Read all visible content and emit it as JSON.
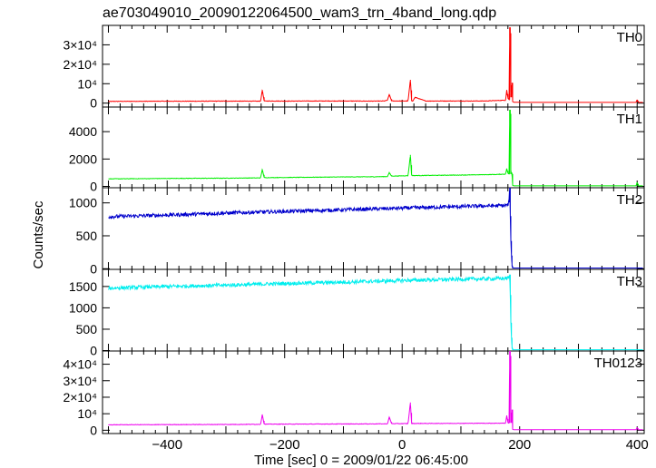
{
  "chart_data": {
    "type": "line",
    "title": "ae703049010_20090122064500_wam3_trn_4band_long.qdp",
    "xlabel": "Time [sec] 0 = 2009/01/22 06:45:00",
    "ylabel": "Counts/sec",
    "xlim": [
      -510,
      412
    ],
    "x_ticks": [
      -400,
      -200,
      0,
      200,
      400
    ],
    "panels": [
      {
        "name": "TH0",
        "color": "#ff0000",
        "ylim": [
          -2000,
          40000
        ],
        "y_ticks": [
          {
            "value": 0,
            "label": "0"
          },
          {
            "value": 10000,
            "label": "10⁴"
          },
          {
            "value": 20000,
            "label": "2×10⁴"
          },
          {
            "value": 30000,
            "label": "3×10⁴"
          }
        ],
        "series": {
          "x": [
            -500,
            -450,
            -400,
            -350,
            -300,
            -241,
            -238,
            -235,
            -200,
            -150,
            -100,
            -50,
            -30,
            -25,
            -22,
            -18,
            -15,
            -10,
            10,
            14,
            16,
            18,
            22,
            40,
            60,
            100,
            140,
            176,
            178,
            180,
            182,
            183,
            184,
            185,
            186,
            187,
            188,
            190,
            200,
            250,
            300,
            350,
            398,
            400,
            402,
            410
          ],
          "y": [
            900,
            950,
            1000,
            1000,
            1050,
            1000,
            6800,
            1100,
            1050,
            1100,
            1100,
            1050,
            1100,
            1500,
            4500,
            1200,
            1100,
            1100,
            1100,
            12000,
            1200,
            1100,
            3000,
            1100,
            1100,
            1100,
            1100,
            1500,
            6800,
            2500,
            1800,
            39000,
            36000,
            3000,
            8000,
            10500,
            800,
            500,
            400,
            400,
            400,
            400,
            400,
            1800,
            400,
            400
          ]
        }
      },
      {
        "name": "TH1",
        "color": "#00ee00",
        "ylim": [
          -100,
          5800
        ],
        "y_ticks": [
          {
            "value": 0,
            "label": "0"
          },
          {
            "value": 2000,
            "label": "2000"
          },
          {
            "value": 4000,
            "label": "4000"
          }
        ],
        "series": {
          "x": [
            -500,
            -450,
            -400,
            -350,
            -300,
            -241,
            -238,
            -235,
            -200,
            -150,
            -100,
            -50,
            -25,
            -22,
            -18,
            -10,
            10,
            14,
            16,
            18,
            40,
            80,
            120,
            160,
            176,
            178,
            180,
            182,
            183,
            184,
            185,
            186,
            187,
            188,
            190,
            200,
            300,
            398,
            400,
            402,
            410
          ],
          "y": [
            550,
            560,
            580,
            590,
            600,
            620,
            1250,
            640,
            650,
            670,
            690,
            700,
            720,
            1000,
            750,
            760,
            780,
            2300,
            800,
            790,
            800,
            820,
            840,
            870,
            900,
            1300,
            950,
            900,
            5600,
            5300,
            900,
            1000,
            900,
            80,
            40,
            40,
            40,
            40,
            300,
            40,
            40
          ]
        }
      },
      {
        "name": "TH2",
        "color": "#0000cc",
        "ylim": [
          -10,
          1230
        ],
        "y_ticks": [
          {
            "value": 0,
            "label": "0"
          },
          {
            "value": 500,
            "label": "500"
          },
          {
            "value": 1000,
            "label": "1000"
          }
        ],
        "series": {
          "x": [
            -500,
            -400,
            -300,
            -200,
            -100,
            0,
            100,
            150,
            175,
            180,
            182,
            183,
            184,
            185,
            186,
            187,
            188,
            190,
            200,
            300,
            400,
            410
          ],
          "y": [
            790,
            815,
            845,
            870,
            895,
            920,
            945,
            955,
            960,
            970,
            1040,
            1230,
            800,
            420,
            200,
            40,
            10,
            10,
            10,
            10,
            10,
            10
          ]
        }
      },
      {
        "name": "TH3",
        "color": "#00eeee",
        "ylim": [
          -10,
          1900
        ],
        "y_ticks": [
          {
            "value": 0,
            "label": "0"
          },
          {
            "value": 500,
            "label": "500"
          },
          {
            "value": 1000,
            "label": "1000"
          },
          {
            "value": 1500,
            "label": "1500"
          }
        ],
        "series": {
          "x": [
            -500,
            -400,
            -300,
            -200,
            -100,
            0,
            100,
            150,
            175,
            180,
            182,
            183,
            184,
            185,
            186,
            187,
            188,
            190,
            200,
            300,
            400,
            410
          ],
          "y": [
            1460,
            1500,
            1530,
            1570,
            1600,
            1640,
            1670,
            1680,
            1690,
            1700,
            1710,
            1780,
            1300,
            650,
            300,
            60,
            20,
            20,
            20,
            20,
            20,
            20
          ]
        }
      },
      {
        "name": "TH0123",
        "color": "#ee00ee",
        "ylim": [
          -2000,
          48000
        ],
        "y_ticks": [
          {
            "value": 0,
            "label": "0"
          },
          {
            "value": 10000,
            "label": "10⁴"
          },
          {
            "value": 20000,
            "label": "2×10⁴"
          },
          {
            "value": 30000,
            "label": "3×10⁴"
          },
          {
            "value": 40000,
            "label": "4×10⁴"
          }
        ],
        "series": {
          "x": [
            -500,
            -450,
            -400,
            -350,
            -300,
            -241,
            -238,
            -235,
            -200,
            -150,
            -100,
            -50,
            -25,
            -22,
            -18,
            -10,
            10,
            14,
            16,
            18,
            40,
            80,
            120,
            160,
            176,
            178,
            180,
            182,
            183,
            184,
            185,
            186,
            187,
            188,
            190,
            200,
            300,
            398,
            400,
            402,
            410
          ],
          "y": [
            3300,
            3350,
            3400,
            3450,
            3500,
            3600,
            9600,
            3700,
            3700,
            3750,
            3800,
            3850,
            3900,
            8000,
            4000,
            4000,
            4000,
            16800,
            4100,
            4100,
            4100,
            4150,
            4200,
            4250,
            4300,
            9000,
            4500,
            4400,
            48000,
            45000,
            4500,
            9000,
            12500,
            600,
            300,
            300,
            300,
            300,
            1700,
            300,
            300
          ]
        }
      }
    ]
  }
}
